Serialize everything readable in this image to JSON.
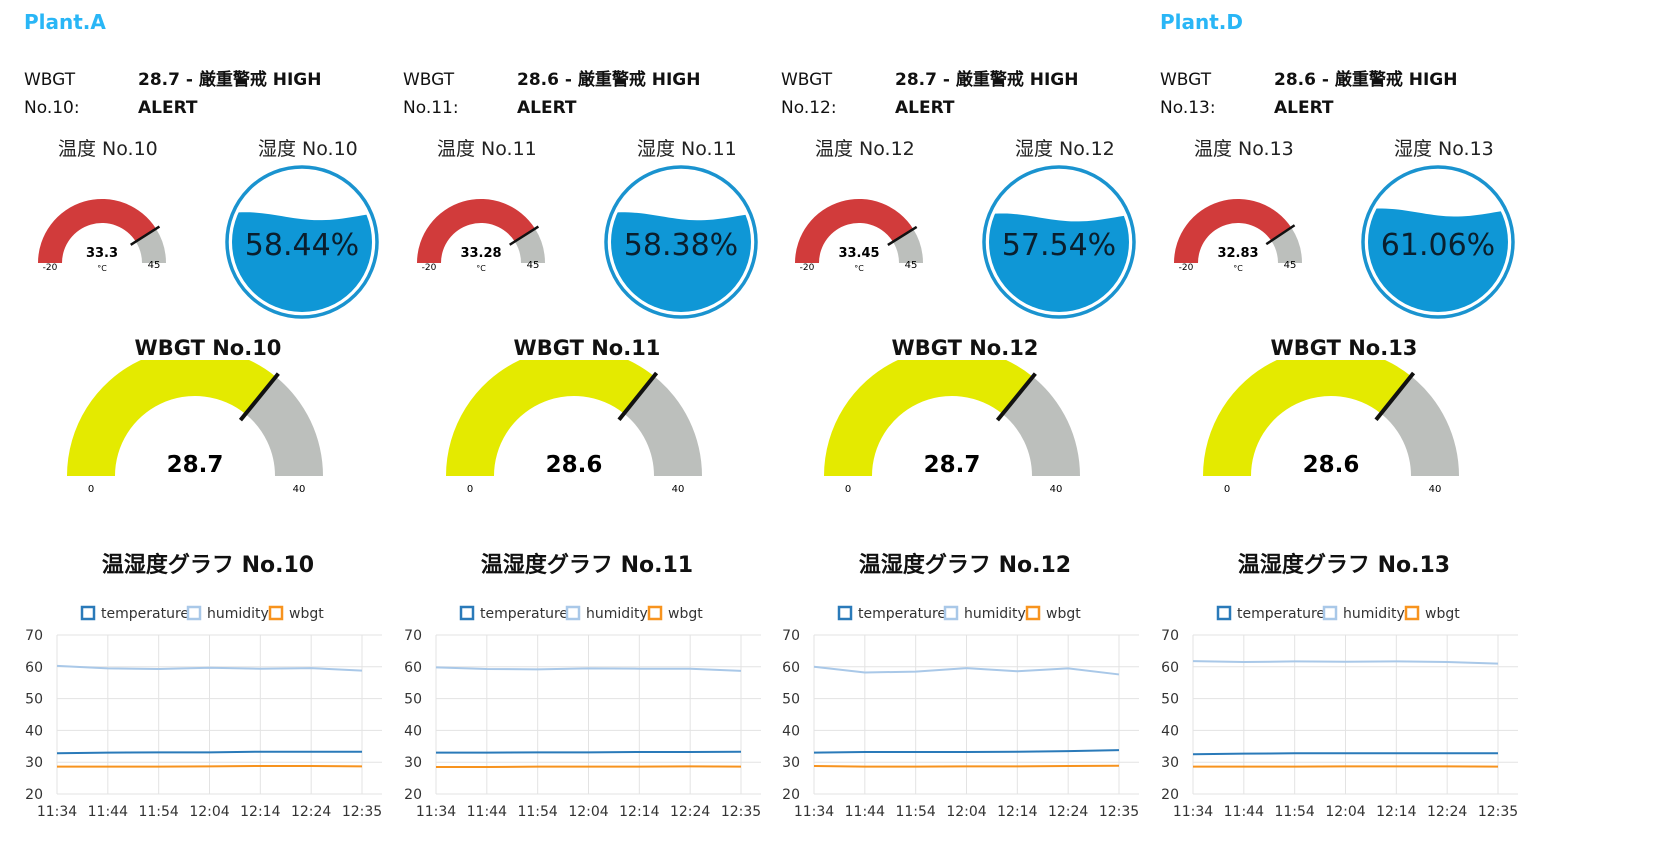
{
  "plants": [
    "Plant.A",
    "Plant.D"
  ],
  "colors": {
    "plant_title": "#29b6f6",
    "temp_gauge": "#d13b3b",
    "gauge_empty": "#bcbfbc",
    "humidity_fill": "#0f97d6",
    "humidity_ring": "#1a93cf",
    "wbgt_gauge": "#e4ea00",
    "series_temperature": "#2a7ab9",
    "series_humidity": "#a9c8e8",
    "series_wbgt": "#f7931e"
  },
  "panels": [
    {
      "wbgt_key": "WBGT",
      "no_key": "No.10:",
      "status_line1": "28.7 - 厳重警戒 HIGH",
      "status_line2": "ALERT",
      "temp_label": "温度 No.10",
      "hum_label": "湿度 No.10",
      "temp_value": "33.3",
      "temp_unit": "°C",
      "temp_min": "-20",
      "temp_max": "45",
      "humidity_value": "58.44%",
      "humidity_pct": 58.44,
      "wbgt_title": "WBGT No.10",
      "wbgt_value": "28.7",
      "wbgt_min": "0",
      "wbgt_max": "40",
      "chart_title": "温湿度グラフ No.10"
    },
    {
      "wbgt_key": "WBGT",
      "no_key": "No.11:",
      "status_line1": "28.6 - 厳重警戒 HIGH",
      "status_line2": "ALERT",
      "temp_label": "温度 No.11",
      "hum_label": "湿度 No.11",
      "temp_value": "33.28",
      "temp_unit": "°C",
      "temp_min": "-20",
      "temp_max": "45",
      "humidity_value": "58.38%",
      "humidity_pct": 58.38,
      "wbgt_title": "WBGT No.11",
      "wbgt_value": "28.6",
      "wbgt_min": "0",
      "wbgt_max": "40",
      "chart_title": "温湿度グラフ No.11"
    },
    {
      "wbgt_key": "WBGT",
      "no_key": "No.12:",
      "status_line1": "28.7 - 厳重警戒 HIGH",
      "status_line2": "ALERT",
      "temp_label": "温度 No.12",
      "hum_label": "湿度 No.12",
      "temp_value": "33.45",
      "temp_unit": "°C",
      "temp_min": "-20",
      "temp_max": "45",
      "humidity_value": "57.54%",
      "humidity_pct": 57.54,
      "wbgt_title": "WBGT No.12",
      "wbgt_value": "28.7",
      "wbgt_min": "0",
      "wbgt_max": "40",
      "chart_title": "温湿度グラフ No.12"
    },
    {
      "wbgt_key": "WBGT",
      "no_key": "No.13:",
      "status_line1": "28.6 - 厳重警戒 HIGH",
      "status_line2": "ALERT",
      "temp_label": "温度 No.13",
      "hum_label": "湿度 No.13",
      "temp_value": "32.83",
      "temp_unit": "°C",
      "temp_min": "-20",
      "temp_max": "45",
      "humidity_value": "61.06%",
      "humidity_pct": 61.06,
      "wbgt_title": "WBGT No.13",
      "wbgt_value": "28.6",
      "wbgt_min": "0",
      "wbgt_max": "40",
      "chart_title": "温湿度グラフ No.13"
    }
  ],
  "chart_data": [
    {
      "type": "line",
      "title": "温湿度グラフ No.10",
      "x": [
        "11:34",
        "11:44",
        "11:54",
        "12:04",
        "12:14",
        "12:24",
        "12:35"
      ],
      "ylim": [
        20,
        70
      ],
      "yticks": [
        20,
        30,
        40,
        50,
        60,
        70
      ],
      "grid": true,
      "legend": "top",
      "series": [
        {
          "name": "temperature",
          "values": [
            32.8,
            33.0,
            33.1,
            33.1,
            33.3,
            33.3,
            33.3
          ]
        },
        {
          "name": "humidity",
          "values": [
            60.3,
            59.5,
            59.3,
            59.7,
            59.4,
            59.6,
            58.8
          ]
        },
        {
          "name": "wbgt",
          "values": [
            28.6,
            28.6,
            28.6,
            28.7,
            28.8,
            28.8,
            28.7
          ]
        }
      ]
    },
    {
      "type": "line",
      "title": "温湿度グラフ No.11",
      "x": [
        "11:34",
        "11:44",
        "11:54",
        "12:04",
        "12:14",
        "12:24",
        "12:35"
      ],
      "ylim": [
        20,
        70
      ],
      "yticks": [
        20,
        30,
        40,
        50,
        60,
        70
      ],
      "grid": true,
      "legend": "top",
      "series": [
        {
          "name": "temperature",
          "values": [
            33.0,
            33.0,
            33.1,
            33.1,
            33.2,
            33.2,
            33.3
          ]
        },
        {
          "name": "humidity",
          "values": [
            59.8,
            59.3,
            59.2,
            59.5,
            59.4,
            59.4,
            58.7
          ]
        },
        {
          "name": "wbgt",
          "values": [
            28.5,
            28.5,
            28.6,
            28.6,
            28.6,
            28.7,
            28.6
          ]
        }
      ]
    },
    {
      "type": "line",
      "title": "温湿度グラフ No.12",
      "x": [
        "11:34",
        "11:44",
        "11:54",
        "12:04",
        "12:14",
        "12:24",
        "12:35"
      ],
      "ylim": [
        20,
        70
      ],
      "yticks": [
        20,
        30,
        40,
        50,
        60,
        70
      ],
      "grid": true,
      "legend": "top",
      "series": [
        {
          "name": "temperature",
          "values": [
            33.0,
            33.2,
            33.2,
            33.2,
            33.3,
            33.5,
            33.8
          ]
        },
        {
          "name": "humidity",
          "values": [
            60.0,
            58.2,
            58.5,
            59.6,
            58.6,
            59.5,
            57.6
          ]
        },
        {
          "name": "wbgt",
          "values": [
            28.8,
            28.6,
            28.6,
            28.7,
            28.7,
            28.8,
            28.9
          ]
        }
      ]
    },
    {
      "type": "line",
      "title": "温湿度グラフ No.13",
      "x": [
        "11:34",
        "11:44",
        "11:54",
        "12:04",
        "12:14",
        "12:24",
        "12:35"
      ],
      "ylim": [
        20,
        70
      ],
      "yticks": [
        20,
        30,
        40,
        50,
        60,
        70
      ],
      "grid": true,
      "legend": "top",
      "series": [
        {
          "name": "temperature",
          "values": [
            32.5,
            32.7,
            32.8,
            32.8,
            32.8,
            32.8,
            32.8
          ]
        },
        {
          "name": "humidity",
          "values": [
            61.8,
            61.5,
            61.7,
            61.6,
            61.7,
            61.5,
            61.0
          ]
        },
        {
          "name": "wbgt",
          "values": [
            28.6,
            28.6,
            28.6,
            28.7,
            28.7,
            28.7,
            28.6
          ]
        }
      ]
    }
  ]
}
